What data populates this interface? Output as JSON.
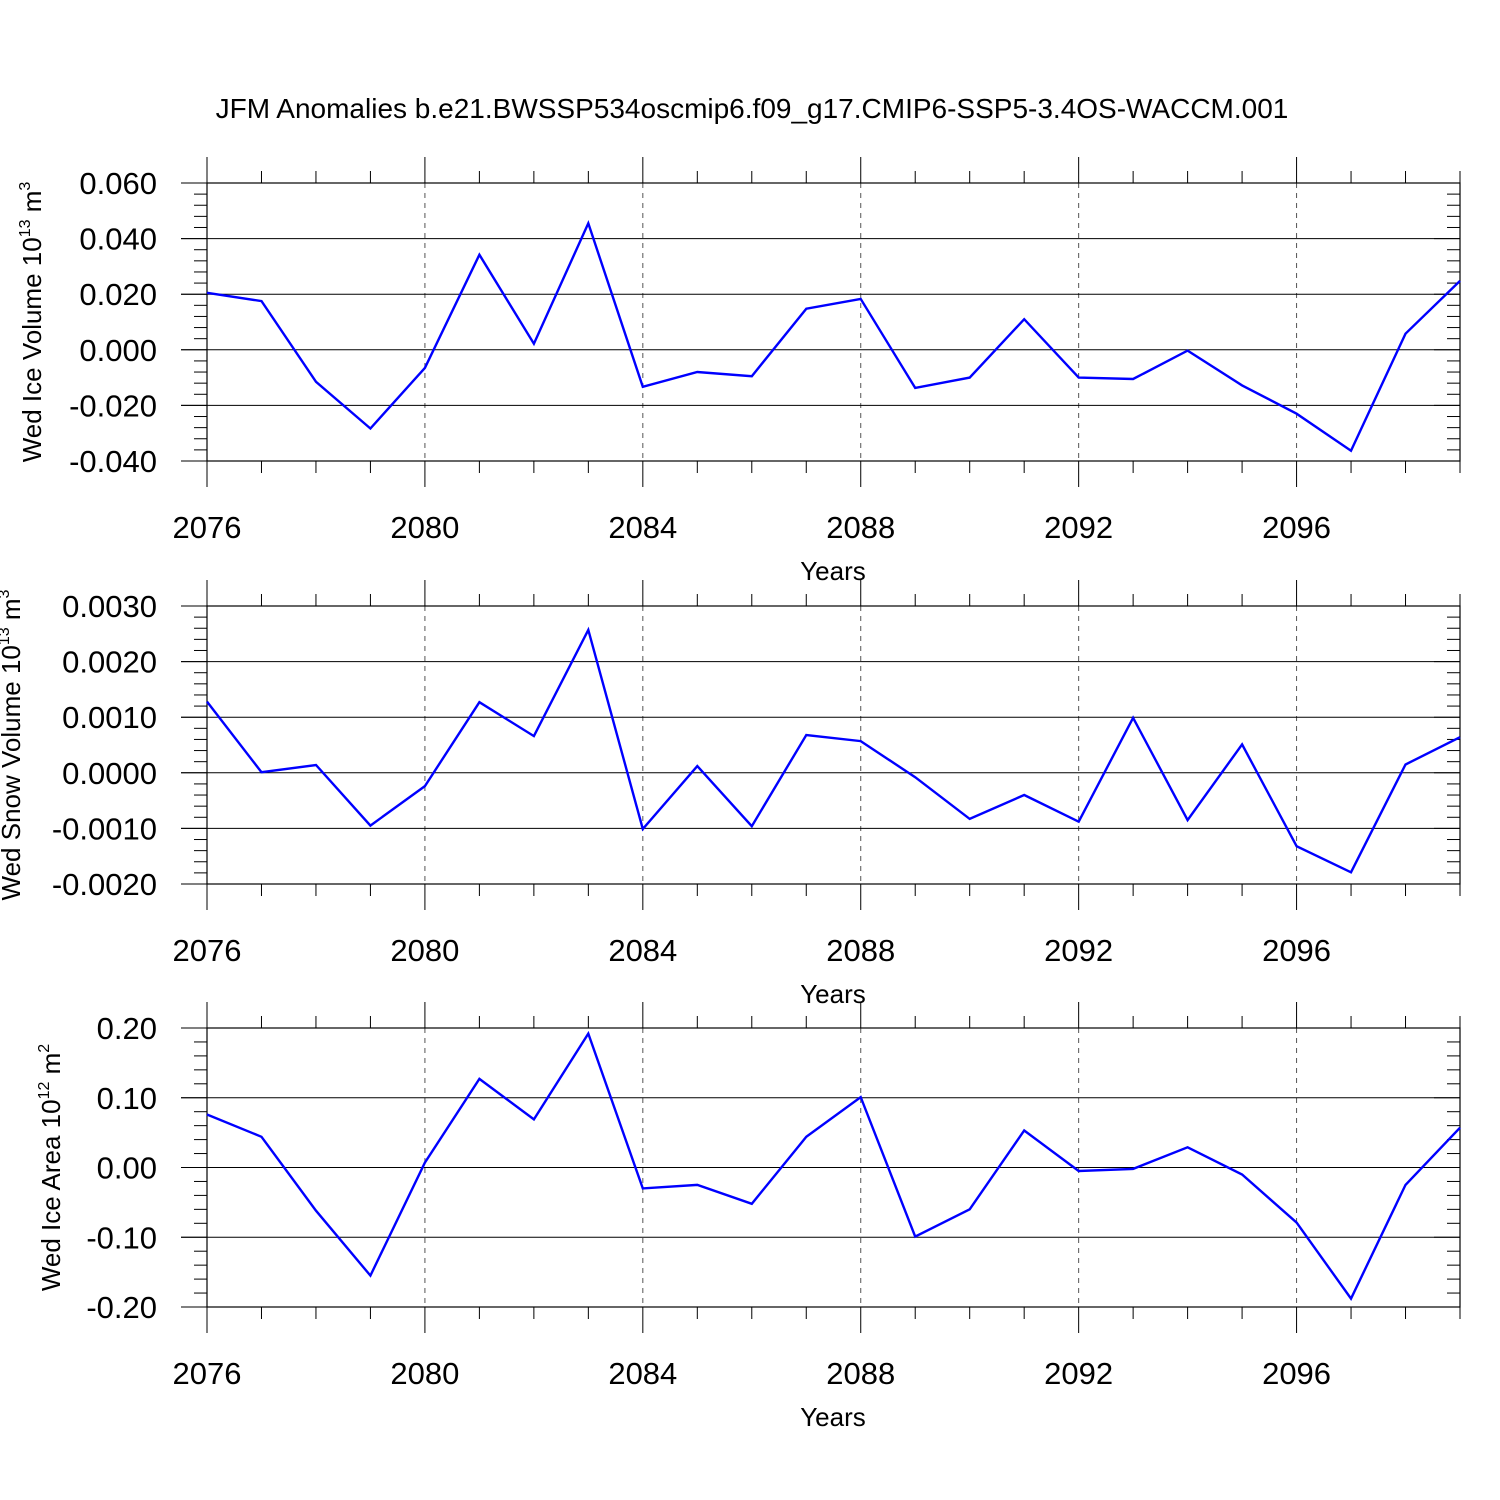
{
  "title": "JFM Anomalies b.e21.BWSSP534oscmip6.f09_g17.CMIP6-SSP5-3.4OS-WACCM.001",
  "chart_data": [
    {
      "type": "line",
      "ylabel": "Wed Ice Volume 10",
      "ylabel_exp": "13",
      "ylabel_unit": " m",
      "ylabel_unit_exp": "3",
      "xlabel": "Years",
      "xlim": [
        2076,
        2099
      ],
      "ylim": [
        -0.04,
        0.06
      ],
      "yticks": [
        0.06,
        0.04,
        0.02,
        0.0,
        -0.02,
        -0.04
      ],
      "ytick_labels": [
        "0.060",
        "0.040",
        "0.020",
        "0.000",
        "-0.020",
        "-0.040"
      ],
      "xticks": [
        2076,
        2080,
        2084,
        2088,
        2092,
        2096
      ],
      "xtick_labels": [
        "2076",
        "2080",
        "2084",
        "2088",
        "2092",
        "2096"
      ],
      "grid": "dashed vertical at labeled years",
      "color": "#0000ff",
      "x": [
        2076,
        2077,
        2078,
        2079,
        2080,
        2081,
        2082,
        2083,
        2084,
        2085,
        2086,
        2087,
        2088,
        2089,
        2090,
        2091,
        2092,
        2093,
        2094,
        2095,
        2096,
        2097,
        2098,
        2099
      ],
      "y": [
        0.0205,
        0.0175,
        -0.0115,
        -0.0283,
        -0.0065,
        0.0342,
        0.0022,
        0.0455,
        -0.0133,
        -0.008,
        -0.0095,
        0.0148,
        0.0183,
        -0.0137,
        -0.01,
        0.011,
        -0.01,
        -0.0105,
        -0.0003,
        -0.0128,
        -0.023,
        -0.0363,
        0.0058,
        0.0248
      ]
    },
    {
      "type": "line",
      "ylabel": "Wed Snow Volume 10",
      "ylabel_exp": "13",
      "ylabel_unit": " m",
      "ylabel_unit_exp": "3",
      "xlabel": "Years",
      "xlim": [
        2076,
        2099
      ],
      "ylim": [
        -0.002,
        0.003
      ],
      "yticks": [
        0.003,
        0.002,
        0.001,
        0.0,
        -0.001,
        -0.002
      ],
      "ytick_labels": [
        "0.0030",
        "0.0020",
        "0.0010",
        "0.0000",
        "-0.0010",
        "-0.0020"
      ],
      "xticks": [
        2076,
        2080,
        2084,
        2088,
        2092,
        2096
      ],
      "xtick_labels": [
        "2076",
        "2080",
        "2084",
        "2088",
        "2092",
        "2096"
      ],
      "grid": "dashed vertical at labeled years",
      "color": "#0000ff",
      "x": [
        2076,
        2077,
        2078,
        2079,
        2080,
        2081,
        2082,
        2083,
        2084,
        2085,
        2086,
        2087,
        2088,
        2089,
        2090,
        2091,
        2092,
        2093,
        2094,
        2095,
        2096,
        2097,
        2098,
        2099
      ],
      "y": [
        0.00128,
        1e-05,
        0.00014,
        -0.00095,
        -0.00024,
        0.00127,
        0.00066,
        0.00257,
        -0.00101,
        0.00012,
        -0.00096,
        0.00068,
        0.00057,
        -8e-05,
        -0.00083,
        -0.0004,
        -0.00088,
        0.00099,
        -0.00085,
        0.00051,
        -0.00132,
        -0.00179,
        0.00015,
        0.00064
      ]
    },
    {
      "type": "line",
      "ylabel": "Wed Ice Area 10",
      "ylabel_exp": "12",
      "ylabel_unit": " m",
      "ylabel_unit_exp": "2",
      "xlabel": "Years",
      "xlim": [
        2076,
        2099
      ],
      "ylim": [
        -0.2,
        0.2
      ],
      "yticks": [
        0.2,
        0.1,
        0.0,
        -0.1,
        -0.2
      ],
      "ytick_labels": [
        "0.20",
        "0.10",
        "0.00",
        "-0.10",
        "-0.20"
      ],
      "xticks": [
        2076,
        2080,
        2084,
        2088,
        2092,
        2096
      ],
      "xtick_labels": [
        "2076",
        "2080",
        "2084",
        "2088",
        "2092",
        "2096"
      ],
      "grid": "dashed vertical at labeled years",
      "color": "#0000ff",
      "x": [
        2076,
        2077,
        2078,
        2079,
        2080,
        2081,
        2082,
        2083,
        2084,
        2085,
        2086,
        2087,
        2088,
        2089,
        2090,
        2091,
        2092,
        2093,
        2094,
        2095,
        2096,
        2097,
        2098,
        2099
      ],
      "y": [
        0.076,
        0.044,
        -0.062,
        -0.155,
        0.007,
        0.127,
        0.069,
        0.192,
        -0.03,
        -0.025,
        -0.052,
        0.044,
        0.101,
        -0.099,
        -0.06,
        0.053,
        -0.005,
        -0.002,
        0.029,
        -0.01,
        -0.079,
        -0.188,
        -0.025,
        0.057
      ]
    }
  ]
}
